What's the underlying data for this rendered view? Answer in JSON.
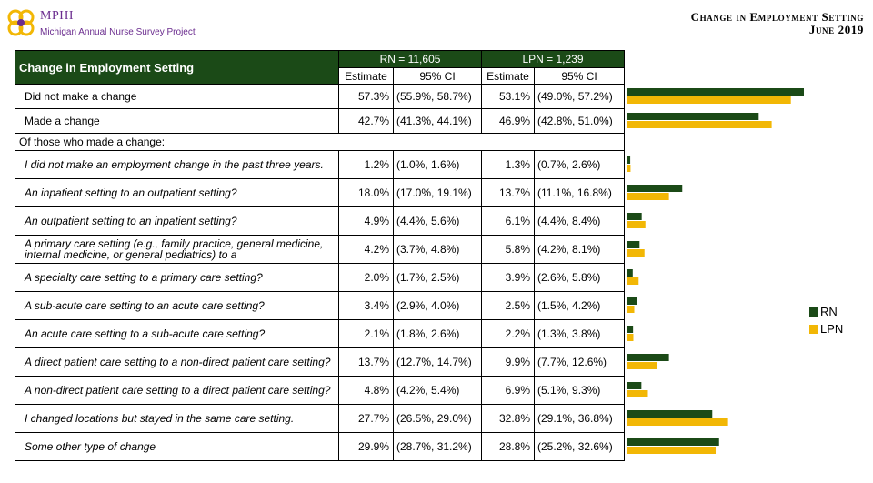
{
  "header": {
    "org": "MPHI",
    "project": "Michigan Annual Nurse Survey Project",
    "title_line1": "Change in Employment Setting",
    "title_line2": "June 2019"
  },
  "table": {
    "title": "Change in Employment Setting",
    "rn_header": "RN = 11,605",
    "lpn_header": "LPN = 1,239",
    "estimate_label": "Estimate",
    "ci_label": "95% CI",
    "section_label": "Of those who made a change:"
  },
  "legend": {
    "rn": "RN",
    "lpn": "LPN"
  },
  "colors": {
    "rn": "#1b4a17",
    "lpn": "#f2b705",
    "header_bg": "#1b4a17"
  },
  "chart_data": {
    "type": "bar",
    "orientation": "horizontal",
    "categories": [
      "Did not make a change",
      "Made a change",
      "I did not make an employment change in the past three years.",
      "An inpatient setting to an outpatient setting?",
      "An outpatient setting to an inpatient setting?",
      "A primary care setting (e.g., family practice, general medicine, internal medicine, or general pediatrics) to a",
      "A specialty care setting to a primary care setting?",
      "A sub-acute care setting to an acute care setting?",
      "An acute care setting to a sub-acute care setting?",
      "A direct patient care setting to a non-direct patient care setting?",
      "A non-direct patient care setting to a direct patient care setting?",
      "I changed locations but stayed in the same care setting.",
      "Some other type of change"
    ],
    "series": [
      {
        "name": "RN",
        "values": [
          57.3,
          42.7,
          1.2,
          18.0,
          4.9,
          4.2,
          2.0,
          3.4,
          2.1,
          13.7,
          4.8,
          27.7,
          29.9
        ],
        "labels": [
          "57.3%",
          "42.7%",
          "1.2%",
          "18.0%",
          "4.9%",
          "4.2%",
          "2.0%",
          "3.4%",
          "2.1%",
          "13.7%",
          "4.8%",
          "27.7%",
          "29.9%"
        ],
        "ci": [
          "(55.9%, 58.7%)",
          "(41.3%, 44.1%)",
          "(1.0%, 1.6%)",
          "(17.0%, 19.1%)",
          "(4.4%, 5.6%)",
          "(3.7%, 4.8%)",
          "(1.7%, 2.5%)",
          "(2.9%, 4.0%)",
          "(1.8%, 2.6%)",
          "(12.7%, 14.7%)",
          "(4.2%, 5.4%)",
          "(26.5%, 29.0%)",
          "(28.7%, 31.2%)"
        ]
      },
      {
        "name": "LPN",
        "values": [
          53.1,
          46.9,
          1.3,
          13.7,
          6.1,
          5.8,
          3.9,
          2.5,
          2.2,
          9.9,
          6.9,
          32.8,
          28.8
        ],
        "labels": [
          "53.1%",
          "46.9%",
          "1.3%",
          "13.7%",
          "6.1%",
          "5.8%",
          "3.9%",
          "2.5%",
          "2.2%",
          "9.9%",
          "6.9%",
          "32.8%",
          "28.8%"
        ],
        "ci": [
          "(49.0%, 57.2%)",
          "(42.8%, 51.0%)",
          "(0.7%, 2.6%)",
          "(11.1%, 16.8%)",
          "(4.4%, 8.4%)",
          "(4.2%, 8.1%)",
          "(2.6%, 5.8%)",
          "(1.5%, 4.2%)",
          "(1.3%, 3.8%)",
          "(7.7%, 12.6%)",
          "(5.1%, 9.3%)",
          "(29.1%, 36.8%)",
          "(25.2%, 32.6%)"
        ]
      }
    ],
    "xlim": [
      0,
      60
    ],
    "legend": "right",
    "grid": false
  }
}
